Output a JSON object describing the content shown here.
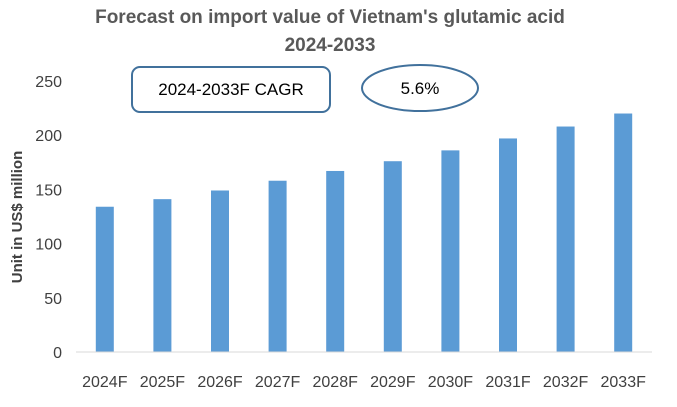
{
  "chart_data": {
    "type": "bar",
    "title_line1": "Forecast on import value of Vietnam's glutamic acid",
    "title_line2": "2024-2033",
    "xlabel": "",
    "ylabel": "Unit in US$ million",
    "categories": [
      "2024F",
      "2025F",
      "2026F",
      "2027F",
      "2028F",
      "2029F",
      "2030F",
      "2031F",
      "2032F",
      "2033F"
    ],
    "values": [
      134,
      141,
      149,
      158,
      167,
      176,
      186,
      197,
      208,
      220
    ],
    "ylim": [
      0,
      250
    ],
    "yticks": [
      "0",
      "50",
      "100",
      "150",
      "200",
      "250"
    ],
    "grid": false,
    "legend": "none",
    "bar_color": "#5b9bd5",
    "annotations": {
      "cagr_label": "2024-2033F CAGR",
      "cagr_value": "5.6%",
      "box_stroke": "#41719c"
    }
  }
}
